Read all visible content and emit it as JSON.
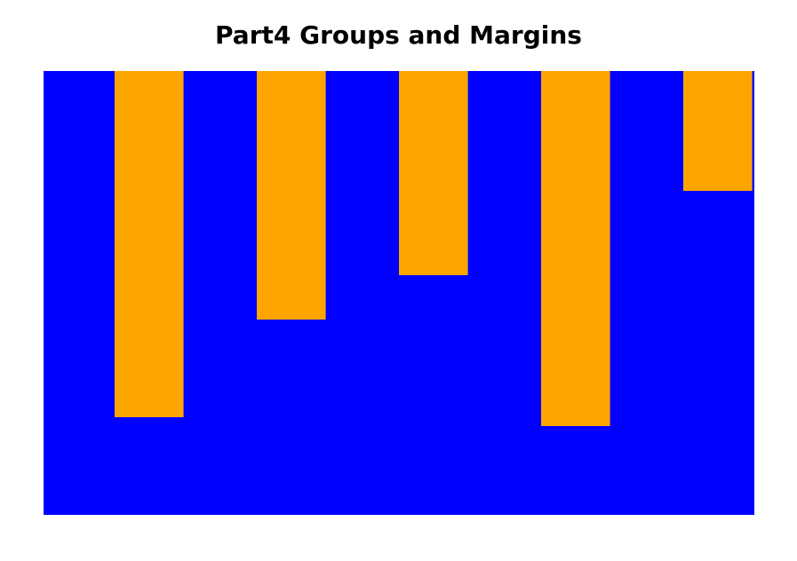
{
  "chart_data": {
    "type": "bar",
    "title": "Part4 Groups and Margins",
    "categories": [
      "",
      "",
      "",
      "",
      ""
    ],
    "values": [
      78,
      56,
      46,
      80,
      27
    ],
    "ylim": [
      0,
      100
    ],
    "orientation": "downward",
    "grid": false,
    "legend": "none",
    "colors": {
      "background": "#0000ff",
      "bar": "#ffa500"
    }
  }
}
